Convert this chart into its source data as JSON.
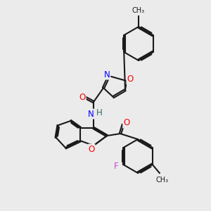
{
  "background_color": "#ebebeb",
  "bond_color": "#1a1a1a",
  "atom_colors": {
    "O": "#ff0000",
    "N": "#0000ff",
    "F": "#cc44cc",
    "H": "#336666",
    "C": "#1a1a1a"
  },
  "figsize": [
    3.0,
    3.0
  ],
  "dpi": 100
}
